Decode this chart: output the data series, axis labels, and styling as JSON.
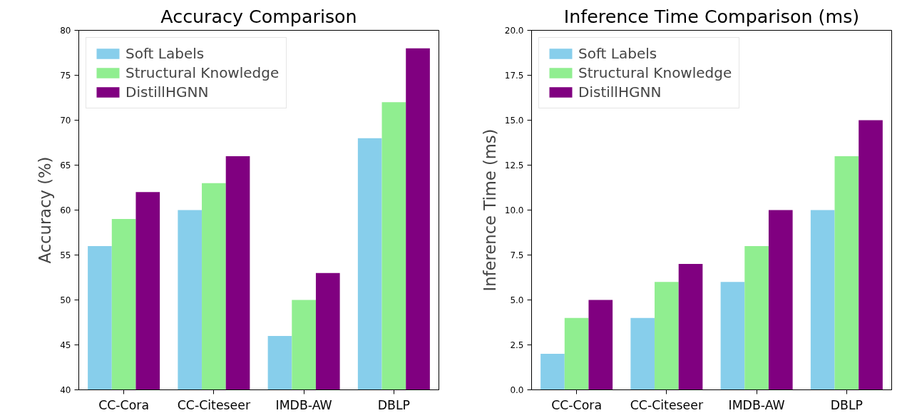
{
  "chart_data": [
    {
      "type": "bar",
      "title": "Accuracy Comparison",
      "ylabel": "Accuracy (%)",
      "categories": [
        "CC-Cora",
        "CC-Citeseer",
        "IMDB-AW",
        "DBLP"
      ],
      "series": [
        {
          "name": "Soft Labels",
          "color": "#87ceeb",
          "values": [
            56,
            60,
            46,
            68
          ]
        },
        {
          "name": "Structural Knowledge",
          "color": "#90ee90",
          "values": [
            59,
            63,
            50,
            72
          ]
        },
        {
          "name": "DistillHGNN",
          "color": "#800080",
          "values": [
            62,
            66,
            53,
            78
          ]
        }
      ],
      "ylim": [
        40,
        80
      ],
      "yticks": [
        40,
        45,
        50,
        55,
        60,
        65,
        70,
        75,
        80
      ],
      "grid": false,
      "legend": "top left"
    },
    {
      "type": "bar",
      "title": "Inference Time Comparison (ms)",
      "ylabel": "Inference Time (ms)",
      "categories": [
        "CC-Cora",
        "CC-Citeseer",
        "IMDB-AW",
        "DBLP"
      ],
      "series": [
        {
          "name": "Soft Labels",
          "color": "#87ceeb",
          "values": [
            2,
            4,
            6,
            10
          ]
        },
        {
          "name": "Structural Knowledge",
          "color": "#90ee90",
          "values": [
            4,
            6,
            8,
            13
          ]
        },
        {
          "name": "DistillHGNN",
          "color": "#800080",
          "values": [
            5,
            7,
            10,
            15
          ]
        }
      ],
      "ylim": [
        0,
        20
      ],
      "yticks": [
        {
          "value": 0,
          "label": "0.0"
        },
        {
          "value": 2.5,
          "label": "2.5"
        },
        {
          "value": 5,
          "label": "5.0"
        },
        {
          "value": 7.5,
          "label": "7.5"
        },
        {
          "value": 10,
          "label": "10.0"
        },
        {
          "value": 12.5,
          "label": "12.5"
        },
        {
          "value": 15,
          "label": "15.0"
        },
        {
          "value": 17.5,
          "label": "17.5"
        },
        {
          "value": 20,
          "label": "20.0"
        }
      ],
      "grid": false,
      "legend": "top left"
    }
  ]
}
